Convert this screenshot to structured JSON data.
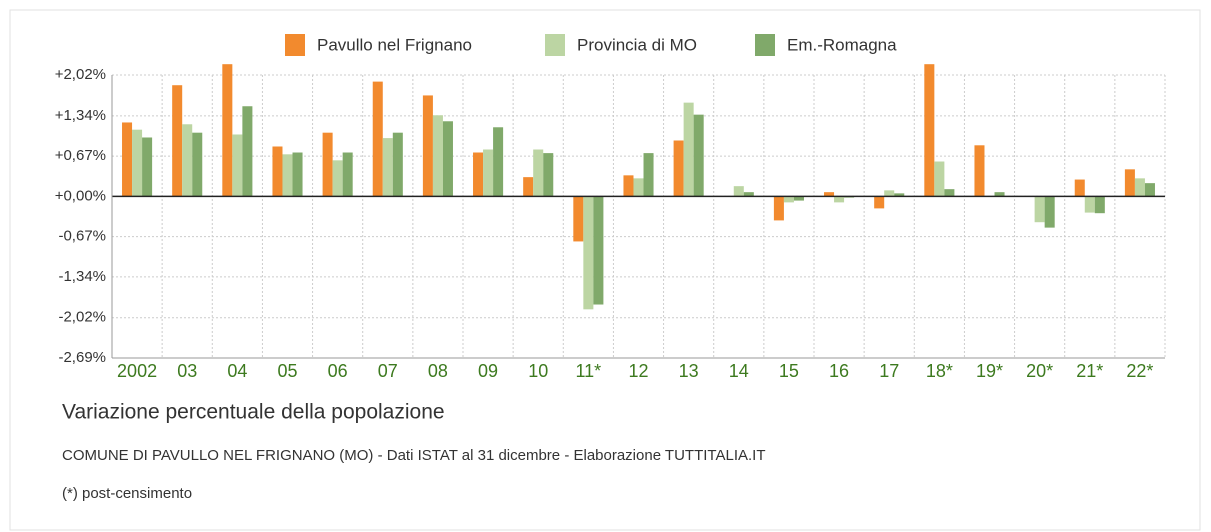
{
  "chart_data": {
    "type": "bar",
    "title": "Variazione percentuale della popolazione",
    "subtitle": "COMUNE DI PAVULLO NEL FRIGNANO (MO) - Dati ISTAT al 31 dicembre - Elaborazione TUTTITALIA.IT",
    "note": "(*) post-censimento",
    "categories": [
      "2002",
      "03",
      "04",
      "05",
      "06",
      "07",
      "08",
      "09",
      "10",
      "11*",
      "12",
      "13",
      "14",
      "15",
      "16",
      "17",
      "18*",
      "19*",
      "20*",
      "21*",
      "22*"
    ],
    "series": [
      {
        "name": "Pavullo nel Frignano",
        "color": "#f28a2e",
        "values": [
          1.23,
          1.85,
          2.2,
          0.83,
          1.06,
          1.91,
          1.68,
          0.73,
          0.32,
          -0.75,
          0.35,
          0.93,
          0,
          -0.4,
          0.07,
          -0.2,
          2.2,
          0.85,
          0,
          0.28,
          0.45
        ]
      },
      {
        "name": "Provincia di MO",
        "color": "#bcd5a3",
        "values": [
          1.11,
          1.2,
          1.03,
          0.7,
          0.6,
          0.97,
          1.35,
          0.78,
          0.78,
          -1.88,
          0.3,
          1.56,
          0.17,
          -0.1,
          -0.1,
          0.1,
          0.58,
          0,
          -0.43,
          -0.27,
          0.3
        ]
      },
      {
        "name": "Em.-Romagna",
        "color": "#80a96a",
        "values": [
          0.98,
          1.06,
          1.5,
          0.73,
          0.73,
          1.06,
          1.25,
          1.15,
          0.72,
          -1.8,
          0.72,
          1.36,
          0.07,
          -0.07,
          -0.02,
          0.05,
          0.12,
          0.07,
          -0.52,
          -0.28,
          0.22
        ]
      }
    ],
    "ylim": [
      -2.69,
      2.02
    ],
    "yticks": [
      {
        "value": 2.02,
        "label": "+2,02%"
      },
      {
        "value": 1.34,
        "label": "+1,34%"
      },
      {
        "value": 0.67,
        "label": "+0,67%"
      },
      {
        "value": 0,
        "label": "+0,00%"
      },
      {
        "value": -0.67,
        "label": "-0,67%"
      },
      {
        "value": -1.34,
        "label": "-1,34%"
      },
      {
        "value": -2.02,
        "label": "-2,02%"
      },
      {
        "value": -2.69,
        "label": "-2,69%"
      }
    ],
    "grid": true
  }
}
